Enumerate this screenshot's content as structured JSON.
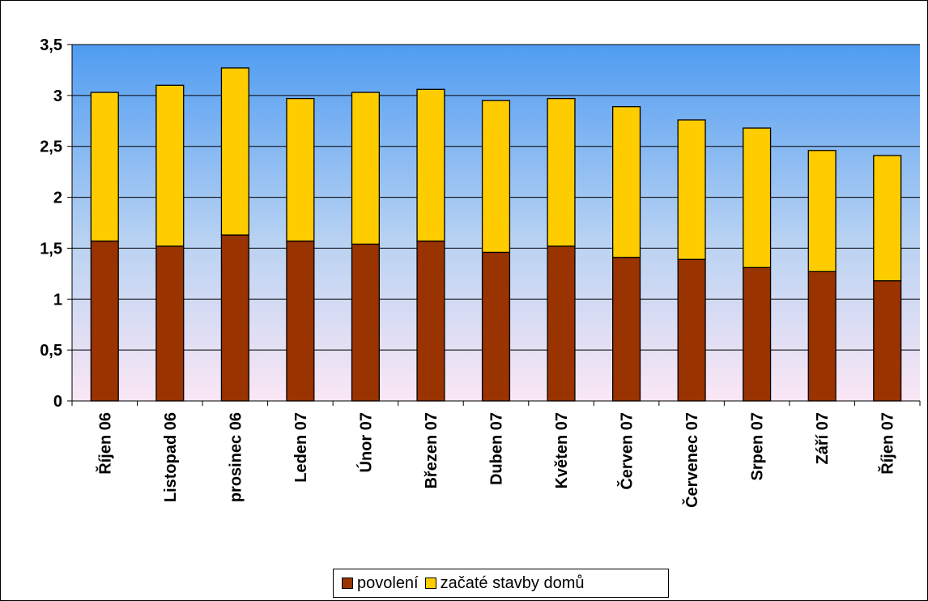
{
  "chart_data": {
    "type": "bar",
    "stacked": true,
    "categories": [
      "Říjen 06",
      "Listopad 06",
      "prosinec 06",
      "Leden 07",
      "Únor 07",
      "Březen 07",
      "Duben 07",
      "Květen 07",
      "Červen 07",
      "Červenec 07",
      "Srpen 07",
      "Září 07",
      "Říjen 07"
    ],
    "series": [
      {
        "name": "povolení",
        "color": "#993300",
        "values": [
          1.57,
          1.52,
          1.63,
          1.57,
          1.54,
          1.57,
          1.46,
          1.52,
          1.41,
          1.39,
          1.31,
          1.27,
          1.18
        ]
      },
      {
        "name": "začaté stavby domů",
        "color": "#ffcc00",
        "values": [
          1.46,
          1.58,
          1.64,
          1.4,
          1.49,
          1.49,
          1.49,
          1.45,
          1.48,
          1.37,
          1.37,
          1.19,
          1.23
        ]
      }
    ],
    "yticks": [
      "0",
      "0,5",
      "1",
      "1,5",
      "2",
      "2,5",
      "3",
      "3,5"
    ],
    "ylim": [
      0,
      3.5
    ],
    "title": "",
    "xlabel": "",
    "ylabel": "",
    "grid": true,
    "legend_position": "bottom"
  }
}
